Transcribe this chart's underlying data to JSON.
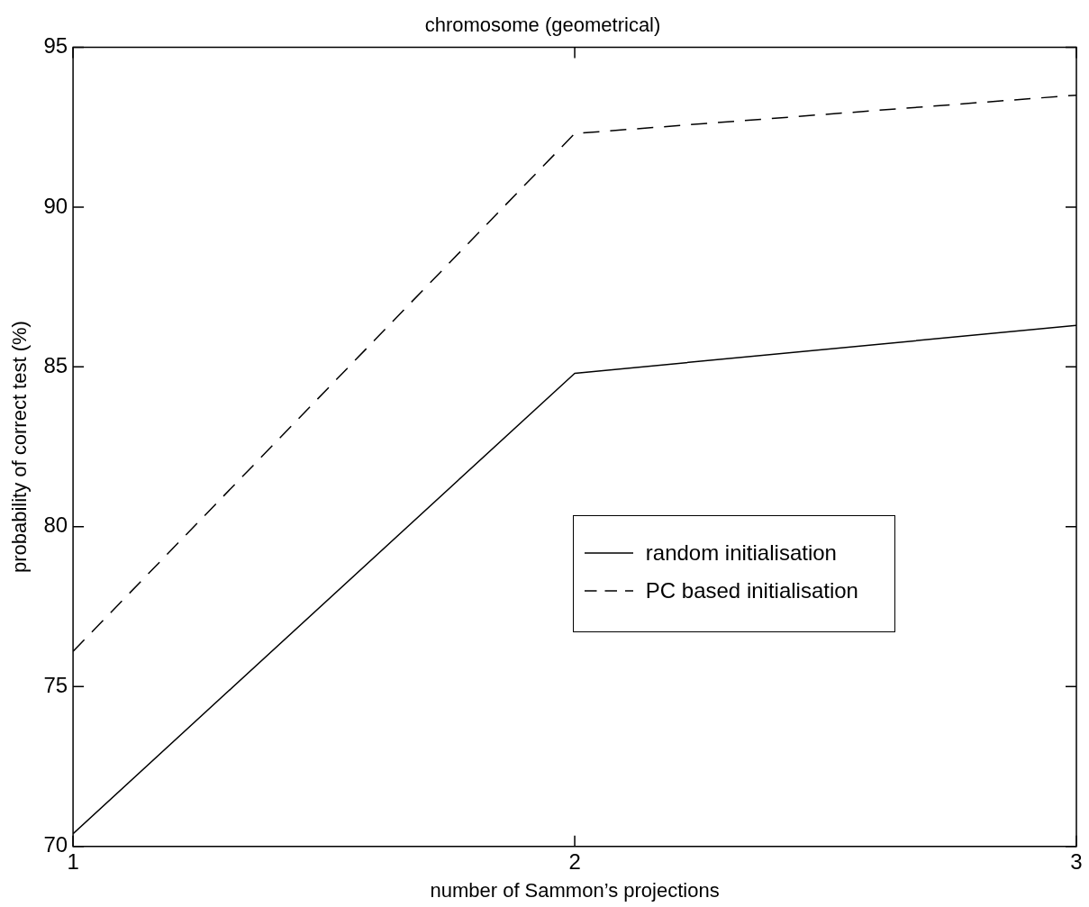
{
  "chart_data": {
    "type": "line",
    "title": "chromosome (geometrical)",
    "xlabel": "number of Sammon’s projections",
    "ylabel": "probability of correct test (%)",
    "x": [
      1,
      2,
      3
    ],
    "xlim": [
      1,
      3
    ],
    "xticks": [
      1,
      2,
      3
    ],
    "ylim": [
      70,
      95
    ],
    "yticks": [
      70,
      75,
      80,
      85,
      90,
      95
    ],
    "grid": false,
    "legend": "right",
    "marker": "none",
    "series": [
      {
        "name": "random initialisation",
        "color": "#000000",
        "line_style": "solid",
        "values": [
          70.4,
          84.8,
          86.3
        ]
      },
      {
        "name": "PC based initialisation",
        "color": "#000000",
        "line_style": "dashed",
        "values": [
          76.1,
          92.3,
          93.5
        ]
      }
    ]
  }
}
